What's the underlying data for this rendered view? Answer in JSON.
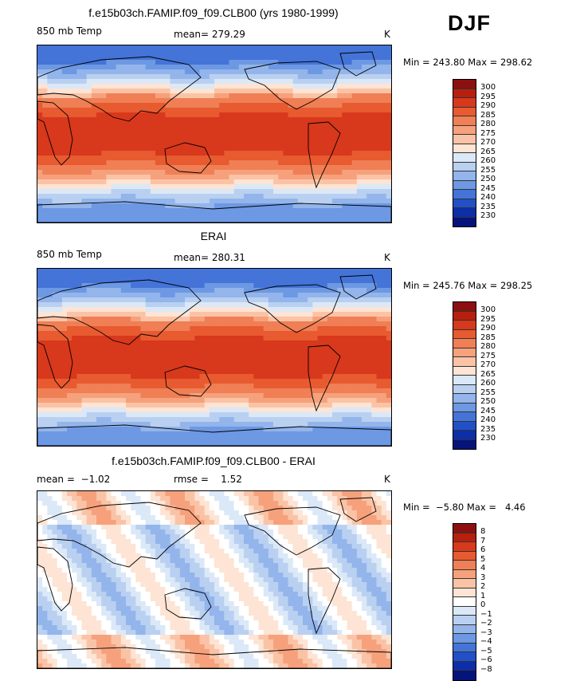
{
  "season": "DJF",
  "panels": [
    {
      "title": "f.e15b03ch.FAMIP.f09_f09.CLB00 (yrs 1980-1999)",
      "left_label": "850 mb Temp",
      "center_label": "mean= 279.29",
      "unit": "K",
      "minmax": "Min = 243.80 Max = 298.62",
      "type": "abs"
    },
    {
      "title": "ERAI",
      "left_label": "850 mb Temp",
      "center_label": "mean= 280.31",
      "unit": "K",
      "minmax": "Min = 245.76 Max = 298.25",
      "type": "abs"
    },
    {
      "title": "f.e15b03ch.FAMIP.f09_f09.CLB00 - ERAI",
      "left_label": "mean =  −1.02",
      "center_label": "rmse =    1.52",
      "unit": "K",
      "minmax": "Min =  −5.80 Max =   4.46",
      "type": "diff"
    }
  ],
  "colorbar_abs": {
    "labels": [
      "300",
      "295",
      "290",
      "285",
      "280",
      "275",
      "270",
      "265",
      "260",
      "255",
      "250",
      "245",
      "240",
      "235",
      "230"
    ],
    "colors": [
      "#8c1010",
      "#b8200e",
      "#d8381c",
      "#e85a30",
      "#f07f55",
      "#f6a17c",
      "#fbc3a6",
      "#fde4d4",
      "#dbe8f7",
      "#b9d0f1",
      "#93b5eb",
      "#6d98e3",
      "#4474d8",
      "#2250c8",
      "#0c2ea8",
      "#04147a"
    ]
  },
  "colorbar_diff": {
    "labels": [
      "8",
      "7",
      "6",
      "5",
      "4",
      "3",
      "2",
      "1",
      "0",
      "−1",
      "−2",
      "−3",
      "−4",
      "−5",
      "−6",
      "−8"
    ],
    "colors": [
      "#8c1010",
      "#b8200e",
      "#d8381c",
      "#e85a30",
      "#f07f55",
      "#f6a17c",
      "#fbc3a6",
      "#fde4d4",
      "#ffffff",
      "#dbe8f7",
      "#b9d0f1",
      "#93b5eb",
      "#6d98e3",
      "#4474d8",
      "#2250c8",
      "#0c2ea8",
      "#04147a"
    ]
  }
}
